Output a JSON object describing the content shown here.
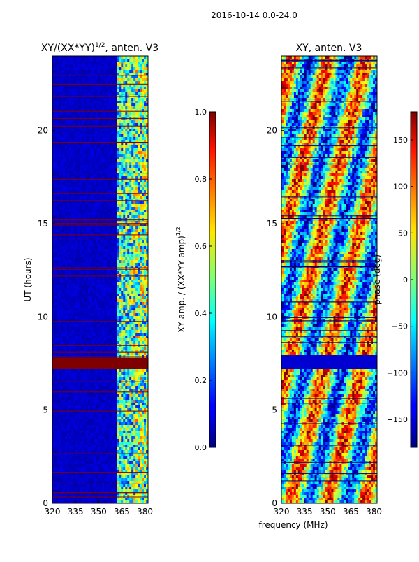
{
  "suptitle": "2016-10-14 0.0-24.0",
  "shared_xlabel": "frequency (MHz)",
  "chart_data": [
    {
      "type": "heatmap",
      "title_main": "XY/(XX*YY)",
      "title_sup": "1/2",
      "title_tail": ", anten. V3",
      "ylabel": "UT (hours)",
      "xlim": [
        320,
        382
      ],
      "ylim": [
        0,
        24
      ],
      "xticks": [
        320,
        335,
        350,
        365,
        380
      ],
      "yticks": [
        0,
        5,
        10,
        15,
        20
      ],
      "colorbar": {
        "label": "XY amp. / (XX*YY amp)",
        "label_sup": "1/2",
        "range": [
          0.0,
          1.0
        ],
        "ticks": [
          "0.0",
          "0.2",
          "0.4",
          "0.6",
          "0.8",
          "1.0"
        ]
      }
    },
    {
      "type": "heatmap",
      "title": "XY, anten. V3",
      "xlim": [
        320,
        382
      ],
      "ylim": [
        0,
        24
      ],
      "xticks": [
        320,
        335,
        350,
        365,
        380
      ],
      "yticks": [
        0,
        5,
        10,
        15,
        20
      ],
      "colorbar": {
        "label": "phase (deg)",
        "range": [
          -180,
          180
        ],
        "ticks": [
          "150",
          "100",
          "50",
          "0",
          "−50",
          "−100",
          "−150"
        ],
        "tick_values": [
          150,
          100,
          50,
          0,
          -50,
          -100,
          -150
        ]
      }
    }
  ]
}
